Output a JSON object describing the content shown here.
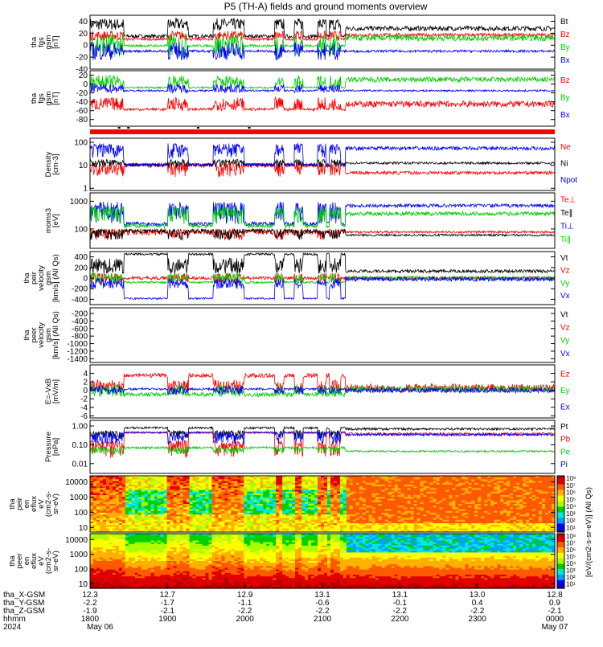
{
  "title": "P5 (TH-A) fields and ground moments overview",
  "panels": [
    {
      "id": "p1",
      "ylabel": [
        "tha",
        "fgs",
        "gsm",
        "[nT]"
      ],
      "ticks": [
        "40",
        "20",
        "0",
        "-20",
        "-40"
      ],
      "tickvals": [
        40,
        20,
        0,
        -20,
        -40
      ],
      "ylim": [
        -40,
        50
      ],
      "legend": [
        {
          "t": "Bt",
          "c": "#000000"
        },
        {
          "t": "Bz",
          "c": "#ff0000"
        },
        {
          "t": "By",
          "c": "#00cc00"
        },
        {
          "t": "Bx",
          "c": "#0000ff"
        }
      ]
    },
    {
      "id": "p2",
      "ylabel": [
        "tha",
        "fgs",
        "gsm",
        "[nT]"
      ],
      "ticks": [
        "20",
        "0",
        "-20",
        "-40",
        "-60",
        "-80"
      ],
      "tickvals": [
        20,
        0,
        -20,
        -40,
        -60,
        -80
      ],
      "ylim": [
        -95,
        30
      ],
      "legend": [
        {
          "t": "Bz",
          "c": "#ff0000"
        },
        {
          "t": "By",
          "c": "#00cc00"
        },
        {
          "t": "Bx",
          "c": "#0000ff"
        }
      ]
    },
    {
      "id": "p3",
      "ylabel": [
        "Density",
        "[cm-3]"
      ],
      "ticks": [
        "100",
        "10",
        "1"
      ],
      "tickvals": [
        100,
        10,
        1
      ],
      "ylim": [
        0.8,
        150
      ],
      "log": true,
      "legend": [
        {
          "t": "Ne",
          "c": "#ff0000"
        },
        {
          "t": "Ni",
          "c": "#000000"
        },
        {
          "t": "Npot",
          "c": "#0000ff"
        }
      ]
    },
    {
      "id": "p4",
      "ylabel": [
        "moms3",
        "[eV]"
      ],
      "ticks": [
        "1000",
        "100"
      ],
      "tickvals": [
        1000,
        100
      ],
      "ylim": [
        20,
        2000
      ],
      "log": true,
      "legend": [
        {
          "t": "Te⊥",
          "c": "#ff0000"
        },
        {
          "t": "Te∥",
          "c": "#000000"
        },
        {
          "t": "Ti⊥",
          "c": "#0000ff"
        },
        {
          "t": "Ti∥",
          "c": "#00cc00"
        }
      ]
    },
    {
      "id": "p5",
      "ylabel": [
        "tha",
        "peir",
        "velocity",
        "gsm",
        "[km/s] (All Qs)"
      ],
      "ticks": [
        "400",
        "200",
        "0",
        "-200",
        "-400"
      ],
      "tickvals": [
        400,
        200,
        0,
        -200,
        -400
      ],
      "ylim": [
        -500,
        500
      ],
      "legend": [
        {
          "t": "Vt",
          "c": "#000000"
        },
        {
          "t": "Vz",
          "c": "#ff0000"
        },
        {
          "t": "Vy",
          "c": "#00cc00"
        },
        {
          "t": "Vx",
          "c": "#0000ff"
        }
      ]
    },
    {
      "id": "p6",
      "ylabel": [
        "tha",
        "peer",
        "velocity",
        "gsm",
        "[km/s] (All Qs)"
      ],
      "ticks": [
        "-200",
        "-400",
        "-600",
        "-800",
        "-1000",
        "-1200",
        "-1400"
      ],
      "tickvals": [
        -200,
        -400,
        -600,
        -800,
        -1000,
        -1200,
        -1400
      ],
      "ylim": [
        -1500,
        -50
      ],
      "legend": [
        {
          "t": "Vt",
          "c": "#000000"
        },
        {
          "t": "Vz",
          "c": "#ff0000"
        },
        {
          "t": "Vy",
          "c": "#00cc00"
        },
        {
          "t": "Vx",
          "c": "#0000ff"
        }
      ]
    },
    {
      "id": "p7",
      "ylabel": [
        "E=-VxB",
        "[mV/m]"
      ],
      "ticks": [
        "4",
        "2",
        "0",
        "-2",
        "-4",
        "-6"
      ],
      "tickvals": [
        4,
        2,
        0,
        -2,
        -4,
        -6
      ],
      "ylim": [
        -6.5,
        6
      ],
      "legend": [
        {
          "t": "Ez",
          "c": "#ff0000"
        },
        {
          "t": "Ey",
          "c": "#00cc00"
        },
        {
          "t": "Ex",
          "c": "#0000ff"
        }
      ]
    },
    {
      "id": "p8",
      "ylabel": [
        "Pressure",
        "[nPa]"
      ],
      "ticks": [
        "1.00",
        "0.10",
        "0.01"
      ],
      "tickvals": [
        1,
        0.1,
        0.01
      ],
      "ylim": [
        0.003,
        2
      ],
      "log": true,
      "legend": [
        {
          "t": "Pt",
          "c": "#000000"
        },
        {
          "t": "Pb",
          "c": "#ff0000"
        },
        {
          "t": "Pe",
          "c": "#00cc00"
        },
        {
          "t": "Pi",
          "c": "#0000ff"
        }
      ]
    },
    {
      "id": "p9",
      "ylabel": [
        "tha",
        "peir",
        "en",
        "eflux",
        "eV",
        "(cm2-s-",
        "sr-eV)"
      ],
      "ticks": [
        "10000",
        "1000",
        "100",
        "10"
      ],
      "tickvals": [
        10000,
        1000,
        100,
        10
      ],
      "ylim": [
        5,
        25000
      ],
      "log": true
    },
    {
      "id": "p10",
      "ylabel": [
        "tha",
        "peer",
        "en",
        "eflux",
        "eV",
        "(cm2-s-",
        "sr-eV)"
      ],
      "ticks": [
        "10000",
        "1000",
        "100",
        "10"
      ],
      "tickvals": [
        10000,
        1000,
        100,
        10
      ],
      "ylim": [
        5,
        25000
      ],
      "log": true
    }
  ],
  "colorbar": {
    "label": "[eV/(cm2-s-sr-eV)] (All Qs)",
    "top_ticks": [
      "10⁸",
      "10⁷",
      "10⁶",
      "10⁵",
      "10⁴",
      "10³",
      "10²",
      "10¹"
    ],
    "bottom_ticks": [
      "10⁸",
      "10⁷",
      "10⁶",
      "10⁵",
      "10⁴",
      "10³",
      "10²",
      "10¹"
    ]
  },
  "xaxis": {
    "rows": [
      {
        "label": "tha_X-GSM",
        "vals": [
          "12.3",
          "12.7",
          "12.9",
          "13.1",
          "13.1",
          "13.0",
          "12.8"
        ]
      },
      {
        "label": "tha_Y-GSM",
        "vals": [
          "-2.2",
          "-1.7",
          "-1.1",
          "-0.6",
          "-0.1",
          "0.4",
          "0.9"
        ]
      },
      {
        "label": "tha_Z-GSM",
        "vals": [
          "-1.9",
          "-2.1",
          "-2.2",
          "-2.2",
          "-2.2",
          "-2.2",
          "-2.1"
        ]
      },
      {
        "label": "hhmm",
        "vals": [
          "1800",
          "1900",
          "2000",
          "2100",
          "2200",
          "2300",
          "0000"
        ]
      },
      {
        "label": "2024",
        "vals": [
          "May 06",
          "",
          "",
          "",
          "",
          "",
          "May 07"
        ]
      }
    ]
  },
  "chart_data": {
    "type": "line",
    "x": [
      "1800",
      "1900",
      "2000",
      "2100",
      "2200",
      "2300",
      "0000"
    ],
    "series_summary": [
      {
        "panel": "p1",
        "name": "Bt",
        "approx": [
          20,
          30,
          20,
          30,
          25,
          28,
          30
        ]
      },
      {
        "panel": "p1",
        "name": "Bz",
        "approx": [
          10,
          15,
          12,
          15,
          15,
          15,
          18
        ]
      },
      {
        "panel": "p1",
        "name": "By",
        "approx": [
          -5,
          5,
          -10,
          10,
          10,
          12,
          15
        ]
      },
      {
        "panel": "p1",
        "name": "Bx",
        "approx": [
          -10,
          -15,
          -10,
          -15,
          -15,
          -15,
          -15
        ]
      },
      {
        "panel": "p3",
        "name": "Ni",
        "approx": [
          8,
          9,
          7,
          10,
          11,
          10,
          12
        ]
      },
      {
        "panel": "p3",
        "name": "Ne",
        "approx": [
          7,
          8,
          5,
          6,
          4,
          4,
          5
        ]
      },
      {
        "panel": "p3",
        "name": "Npot",
        "approx": [
          40,
          60,
          30,
          20,
          60,
          60,
          70
        ]
      },
      {
        "panel": "p8",
        "name": "Pt",
        "approx": [
          0.3,
          0.6,
          0.3,
          0.6,
          0.6,
          0.7,
          0.8
        ]
      },
      {
        "panel": "p8",
        "name": "Pb",
        "approx": [
          0.05,
          0.3,
          0.05,
          0.3,
          0.3,
          0.3,
          0.4
        ]
      },
      {
        "panel": "p8",
        "name": "Pe",
        "approx": [
          0.05,
          0.08,
          0.05,
          0.05,
          0.04,
          0.04,
          0.05
        ]
      }
    ]
  }
}
